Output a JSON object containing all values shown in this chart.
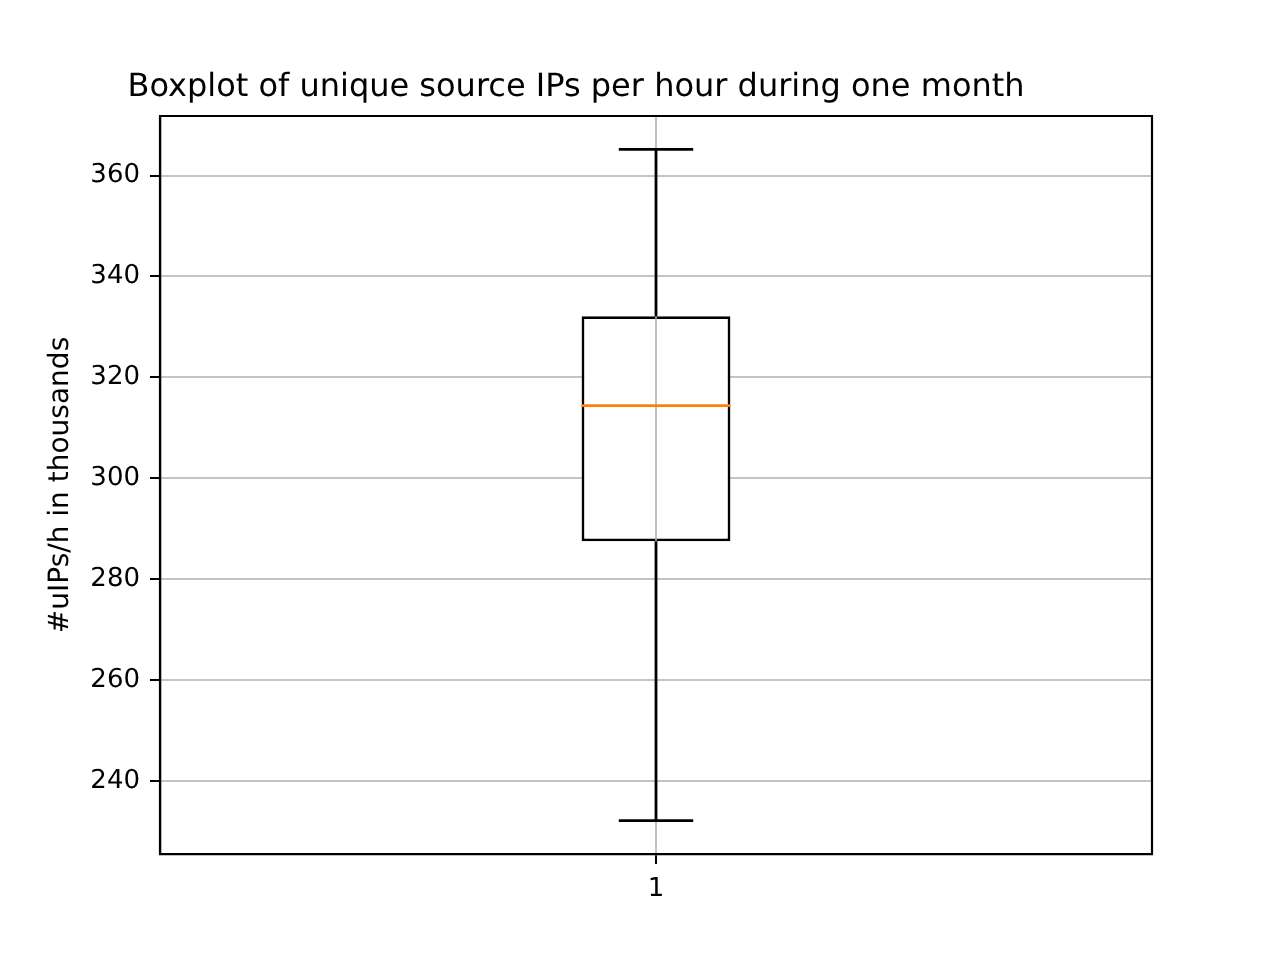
{
  "chart_data": {
    "type": "box",
    "title": "Boxplot of unique source IPs per hour during one month",
    "ylabel": "#uIPs/h in thousands",
    "categories": [
      "1"
    ],
    "color": "#000000",
    "boxes": [
      {
        "low": 232.1,
        "q1": 287.5,
        "median": 314.4,
        "q3": 332.1,
        "high": 365.2
      }
    ],
    "ylim": [
      225.5,
      371.8
    ],
    "yticks": [
      240,
      260,
      280,
      300,
      320,
      340,
      360
    ],
    "grid": true
  }
}
